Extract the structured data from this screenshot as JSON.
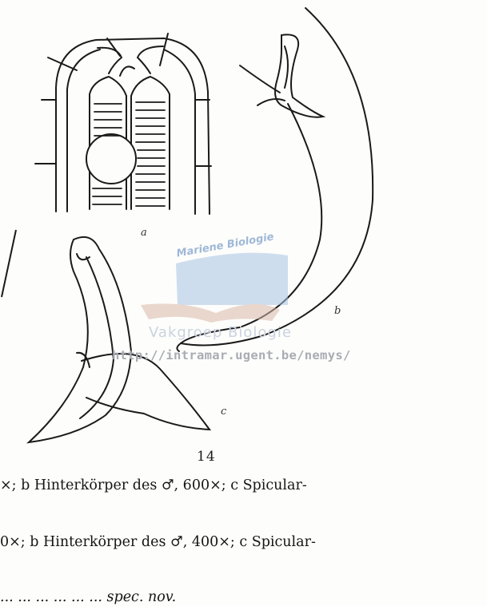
{
  "figure": {
    "number": "14",
    "labels": {
      "a": "a",
      "b": "b",
      "c": "c"
    }
  },
  "watermark": {
    "title": "Mariene Biologie",
    "subtitle": "Vakgroep Biologie",
    "url": "http://intramar.ugent.be/nemys/"
  },
  "captions": [
    "×; b Hinterkörper des ♂, 600×; c Spicular-",
    "0×; b Hinterkörper des ♂, 400×; c Spicular-",
    "... ... ... ... ... ... spec. nov."
  ],
  "colors": {
    "ink": "#1a1a1a",
    "watermark_blue": "#a9c4e4",
    "watermark_tan": "#d9b9a8"
  }
}
